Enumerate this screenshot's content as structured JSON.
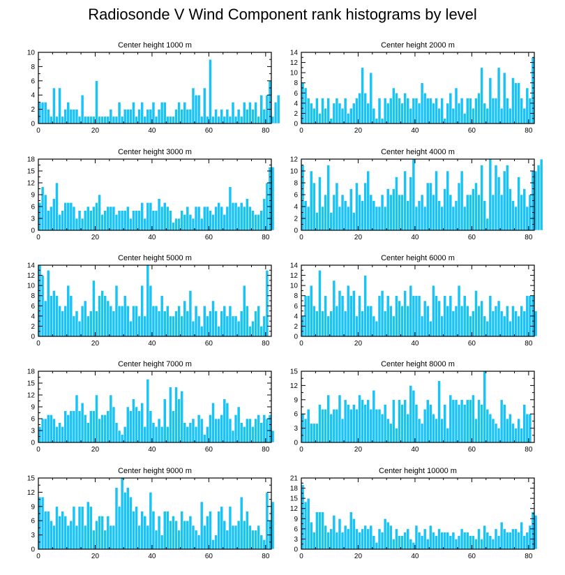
{
  "title": "Radiosonde V Wind Component rank histograms by level",
  "colors": {
    "bar": "#19c3f5",
    "bar_edge": "#ffffff",
    "axis": "#000000"
  },
  "chart_data": [
    {
      "type": "bar",
      "title": "Center height 1000 m",
      "xlabel": "",
      "ylabel": "",
      "xlim": [
        0,
        82
      ],
      "ylim": [
        0,
        10
      ],
      "xticks": [
        0,
        20,
        40,
        60,
        80
      ],
      "yticks": [
        0,
        2,
        4,
        6,
        8,
        10
      ],
      "values": [
        3,
        3,
        3,
        2,
        1,
        5,
        1,
        5,
        1,
        2,
        3,
        2,
        2,
        2,
        1,
        4,
        1,
        1,
        1,
        1,
        6,
        1,
        1,
        1,
        1,
        2,
        1,
        1,
        3,
        1,
        2,
        2,
        2,
        3,
        1,
        2,
        3,
        1,
        2,
        2,
        3,
        1,
        2,
        3,
        3,
        1,
        1,
        1,
        2,
        3,
        2,
        3,
        2,
        2,
        5,
        4,
        4,
        1,
        5,
        1,
        9,
        1,
        2,
        1,
        2,
        1,
        2,
        1,
        3,
        1,
        2,
        1,
        3,
        2,
        3,
        2,
        3,
        1,
        4,
        2,
        4,
        6,
        1,
        3,
        4
      ]
    },
    {
      "type": "bar",
      "title": "Center height 2000 m",
      "xlabel": "",
      "ylabel": "",
      "xlim": [
        0,
        82
      ],
      "ylim": [
        0,
        14
      ],
      "xticks": [
        0,
        20,
        40,
        60,
        80
      ],
      "yticks": [
        0,
        2,
        4,
        6,
        8,
        10,
        12,
        14
      ],
      "values": [
        8,
        7,
        5,
        4,
        3,
        5,
        2,
        5,
        3,
        5,
        1,
        4,
        5,
        4,
        3,
        5,
        2,
        3,
        4,
        5,
        6,
        11,
        6,
        4,
        10,
        3,
        1,
        5,
        1,
        5,
        4,
        5,
        7,
        6,
        5,
        4,
        6,
        5,
        3,
        5,
        5,
        4,
        8,
        6,
        5,
        5,
        4,
        5,
        3,
        5,
        1,
        4,
        6,
        3,
        7,
        4,
        5,
        2,
        5,
        5,
        3,
        5,
        6,
        11,
        4,
        3,
        9,
        5,
        5,
        11,
        3,
        10,
        5,
        3,
        9,
        8,
        8,
        5,
        3,
        7,
        5,
        13
      ]
    },
    {
      "type": "bar",
      "title": "Center height 3000 m",
      "xlabel": "",
      "ylabel": "",
      "xlim": [
        0,
        82
      ],
      "ylim": [
        0,
        18
      ],
      "xticks": [
        0,
        20,
        40,
        60,
        80
      ],
      "yticks": [
        0,
        3,
        6,
        9,
        12,
        15,
        18
      ],
      "values": [
        7,
        11,
        9,
        5,
        6,
        8,
        12,
        4,
        5,
        7,
        7,
        7,
        6,
        3,
        5,
        3,
        5,
        6,
        5,
        6,
        7,
        9,
        4,
        5,
        6,
        6,
        6,
        4,
        5,
        5,
        5,
        6,
        3,
        5,
        5,
        5,
        7,
        3,
        7,
        7,
        5,
        5,
        8,
        6,
        7,
        6,
        5,
        2,
        3,
        3,
        5,
        4,
        6,
        4,
        3,
        6,
        6,
        3,
        6,
        6,
        5,
        4,
        6,
        7,
        6,
        4,
        6,
        11,
        7,
        7,
        6,
        7,
        6,
        8,
        6,
        5,
        4,
        4,
        5,
        8,
        12,
        16,
        16
      ]
    },
    {
      "type": "bar",
      "title": "Center height 4000 m",
      "xlabel": "",
      "ylabel": "",
      "xlim": [
        0,
        82
      ],
      "ylim": [
        0,
        12
      ],
      "xticks": [
        0,
        20,
        40,
        60,
        80
      ],
      "yticks": [
        0,
        2,
        4,
        6,
        8,
        10,
        12
      ],
      "values": [
        11,
        5,
        4,
        10,
        8,
        3,
        9,
        4,
        6,
        11,
        3,
        6,
        8,
        4,
        6,
        5,
        4,
        7,
        3,
        8,
        6,
        5,
        8,
        10,
        6,
        5,
        4,
        4,
        6,
        4,
        7,
        6,
        7,
        9,
        6,
        6,
        10,
        5,
        9,
        12,
        4,
        5,
        6,
        4,
        8,
        8,
        6,
        10,
        5,
        4,
        7,
        10,
        6,
        4,
        5,
        8,
        10,
        4,
        6,
        6,
        7,
        8,
        6,
        11,
        5,
        2,
        12,
        6,
        11,
        9,
        6,
        10,
        11,
        7,
        5,
        4,
        9,
        6,
        7,
        4,
        6,
        10,
        10,
        11,
        12
      ]
    },
    {
      "type": "bar",
      "title": "Center height 5000 m",
      "xlabel": "",
      "ylabel": "",
      "xlim": [
        0,
        82
      ],
      "ylim": [
        0,
        14
      ],
      "xticks": [
        0,
        20,
        40,
        60,
        80
      ],
      "yticks": [
        0,
        2,
        4,
        6,
        8,
        10,
        12,
        14
      ],
      "values": [
        14,
        12,
        7,
        13,
        8,
        9,
        8,
        6,
        5,
        6,
        10,
        8,
        4,
        5,
        3,
        6,
        7,
        4,
        5,
        11,
        5,
        8,
        9,
        8,
        7,
        6,
        5,
        10,
        6,
        6,
        8,
        6,
        3,
        6,
        6,
        4,
        10,
        4,
        14,
        10,
        6,
        6,
        5,
        8,
        5,
        6,
        4,
        4,
        5,
        6,
        4,
        7,
        5,
        9,
        3,
        6,
        4,
        2,
        6,
        4,
        5,
        7,
        5,
        2,
        5,
        6,
        4,
        6,
        4,
        4,
        3,
        5,
        10,
        6,
        2,
        3,
        5,
        6,
        2,
        4,
        13
      ]
    },
    {
      "type": "bar",
      "title": "Center height 6000 m",
      "xlabel": "",
      "ylabel": "",
      "xlim": [
        0,
        82
      ],
      "ylim": [
        0,
        14
      ],
      "xticks": [
        0,
        20,
        40,
        60,
        80
      ],
      "yticks": [
        0,
        2,
        4,
        6,
        8,
        10,
        12,
        14
      ],
      "values": [
        4,
        8,
        8,
        10,
        6,
        5,
        13,
        5,
        8,
        4,
        5,
        11,
        6,
        9,
        8,
        5,
        10,
        8,
        9,
        4,
        8,
        5,
        12,
        6,
        6,
        4,
        3,
        8,
        9,
        5,
        8,
        6,
        4,
        8,
        7,
        6,
        9,
        6,
        10,
        8,
        8,
        8,
        4,
        7,
        6,
        3,
        10,
        8,
        7,
        4,
        8,
        6,
        8,
        5,
        6,
        10,
        6,
        8,
        6,
        4,
        5,
        9,
        6,
        7,
        4,
        3,
        8,
        5,
        6,
        7,
        5,
        4,
        6,
        3,
        6,
        5,
        4,
        6,
        5,
        8,
        8,
        8,
        5
      ]
    },
    {
      "type": "bar",
      "title": "Center height 7000 m",
      "xlabel": "",
      "ylabel": "",
      "xlim": [
        0,
        82
      ],
      "ylim": [
        0,
        18
      ],
      "xticks": [
        0,
        20,
        40,
        60,
        80
      ],
      "yticks": [
        0,
        3,
        6,
        9,
        12,
        15,
        18
      ],
      "values": [
        4,
        6,
        6,
        7,
        7,
        6,
        4,
        5,
        4,
        8,
        7,
        8,
        8,
        12,
        8,
        10,
        7,
        5,
        8,
        8,
        12,
        6,
        7,
        7,
        8,
        12,
        9,
        5,
        3,
        2,
        4,
        9,
        8,
        11,
        9,
        8,
        10,
        4,
        16,
        8,
        5,
        4,
        6,
        4,
        11,
        4,
        14,
        8,
        14,
        11,
        13,
        5,
        4,
        5,
        6,
        4,
        7,
        6,
        2,
        4,
        7,
        10,
        6,
        6,
        7,
        11,
        10,
        6,
        3,
        7,
        9,
        5,
        4,
        6,
        6,
        4,
        6,
        7,
        5,
        7,
        6,
        7,
        3
      ]
    },
    {
      "type": "bar",
      "title": "Center height 8000 m",
      "xlabel": "",
      "ylabel": "",
      "xlim": [
        0,
        82
      ],
      "ylim": [
        0,
        15
      ],
      "xticks": [
        0,
        20,
        40,
        60,
        80
      ],
      "yticks": [
        0,
        3,
        6,
        9,
        12,
        15
      ],
      "values": [
        6,
        5,
        7,
        4,
        4,
        4,
        8,
        7,
        7,
        10,
        6,
        7,
        7,
        10,
        5,
        9,
        8,
        7,
        8,
        7,
        10,
        9,
        8,
        9,
        7,
        11,
        7,
        7,
        6,
        8,
        5,
        4,
        9,
        3,
        9,
        8,
        9,
        6,
        12,
        11,
        8,
        5,
        4,
        7,
        9,
        8,
        6,
        5,
        13,
        5,
        8,
        3,
        10,
        9,
        9,
        8,
        9,
        8,
        9,
        9,
        10,
        5,
        9,
        8,
        15,
        7,
        6,
        5,
        4,
        3,
        9,
        8,
        5,
        6,
        4,
        3,
        5,
        3,
        8,
        6,
        6
      ]
    },
    {
      "type": "bar",
      "title": "Center height 9000 m",
      "xlabel": "",
      "ylabel": "",
      "xlim": [
        0,
        82
      ],
      "ylim": [
        0,
        15
      ],
      "xticks": [
        0,
        20,
        40,
        60,
        80
      ],
      "yticks": [
        0,
        3,
        6,
        9,
        12,
        15
      ],
      "values": [
        11,
        11,
        8,
        8,
        6,
        5,
        9,
        7,
        8,
        7,
        5,
        6,
        9,
        5,
        9,
        9,
        5,
        10,
        9,
        4,
        6,
        7,
        7,
        4,
        7,
        5,
        5,
        13,
        9,
        15,
        12,
        13,
        11,
        8,
        9,
        5,
        8,
        7,
        5,
        12,
        8,
        4,
        7,
        3,
        8,
        8,
        6,
        7,
        6,
        4,
        8,
        6,
        6,
        7,
        5,
        4,
        3,
        10,
        5,
        7,
        8,
        2,
        3,
        8,
        9,
        6,
        4,
        9,
        5,
        5,
        6,
        11,
        6,
        8,
        5,
        4,
        4,
        5,
        3,
        2,
        12,
        6,
        10
      ]
    },
    {
      "type": "bar",
      "title": "Center height 10000 m",
      "xlabel": "",
      "ylabel": "",
      "xlim": [
        0,
        82
      ],
      "ylim": [
        0,
        21
      ],
      "xticks": [
        0,
        20,
        40,
        60,
        80
      ],
      "yticks": [
        0,
        3,
        6,
        9,
        12,
        15,
        18,
        21
      ],
      "values": [
        19,
        14,
        15,
        8,
        5,
        11,
        11,
        11,
        7,
        5,
        6,
        10,
        5,
        9,
        5,
        7,
        6,
        11,
        9,
        6,
        5,
        6,
        7,
        6,
        7,
        4,
        2,
        6,
        5,
        9,
        8,
        7,
        3,
        6,
        4,
        4,
        5,
        6,
        3,
        2,
        7,
        5,
        4,
        6,
        3,
        7,
        5,
        4,
        6,
        5,
        5,
        5,
        4,
        5,
        3,
        4,
        6,
        5,
        5,
        4,
        4,
        3,
        6,
        3,
        7,
        5,
        4,
        3,
        6,
        4,
        8,
        6,
        5,
        5,
        6,
        6,
        5,
        8,
        4,
        5,
        7,
        11,
        10
      ]
    }
  ]
}
